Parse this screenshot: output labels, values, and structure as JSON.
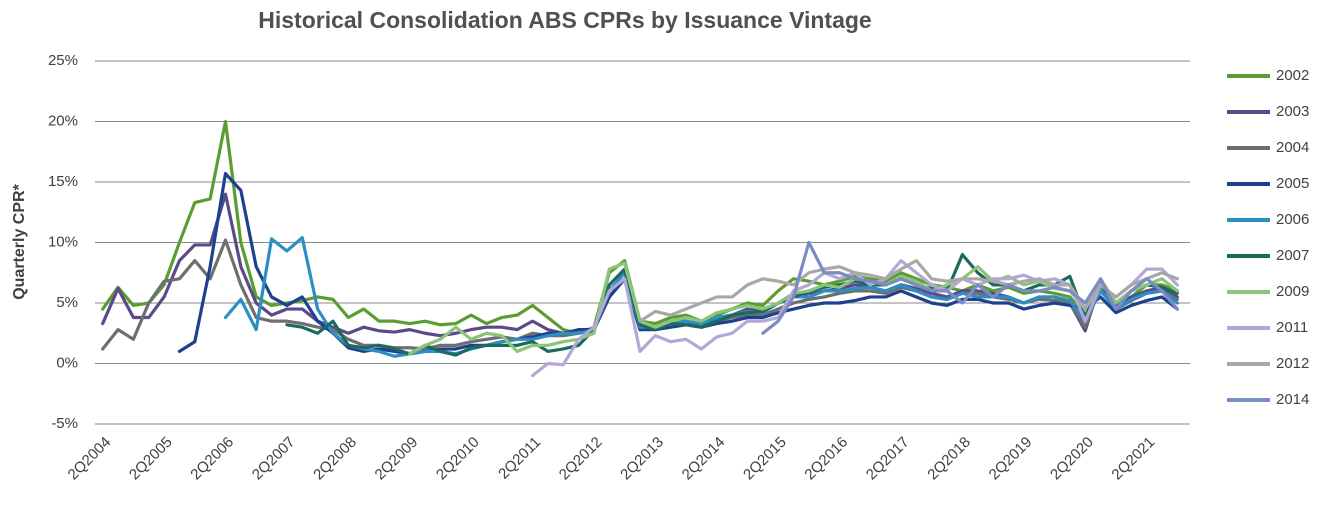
{
  "chart_data": {
    "type": "line",
    "title": "Historical Consolidation ABS CPRs by Issuance Vintage",
    "y_label": "Quarterly CPR*",
    "categories": [
      "2Q2004",
      null,
      null,
      null,
      "2Q2005",
      null,
      null,
      null,
      "2Q2006",
      null,
      null,
      null,
      "2Q2007",
      null,
      null,
      null,
      "2Q2008",
      null,
      null,
      null,
      "2Q2009",
      null,
      null,
      null,
      "2Q2010",
      null,
      null,
      null,
      "2Q2011",
      null,
      null,
      null,
      "2Q2012",
      null,
      null,
      null,
      "2Q2013",
      null,
      null,
      null,
      "2Q2014",
      null,
      null,
      null,
      "2Q2015",
      null,
      null,
      null,
      "2Q2016",
      null,
      null,
      null,
      "2Q2017",
      null,
      null,
      null,
      "2Q2018",
      null,
      null,
      null,
      "2Q2019",
      null,
      null,
      null,
      "2Q2020",
      null,
      null,
      null,
      "2Q2021",
      null,
      null
    ],
    "ylim": [
      -5,
      25
    ],
    "yticks": [
      {
        "value": -5,
        "label": "-5%"
      },
      {
        "value": 0,
        "label": "0%"
      },
      {
        "value": 5,
        "label": "5%"
      },
      {
        "value": 10,
        "label": "10%"
      },
      {
        "value": 15,
        "label": "15%"
      },
      {
        "value": 20,
        "label": "20%"
      },
      {
        "value": 25,
        "label": "25%"
      }
    ],
    "grid": true,
    "legend": "right",
    "series": [
      {
        "name": "2002",
        "color": "#5a9e32",
        "values": [
          4.5,
          6.3,
          4.8,
          5.0,
          6.5,
          10,
          13.3,
          13.6,
          20,
          10,
          5.5,
          4.8,
          5.0,
          5.2,
          5.5,
          5.3,
          3.8,
          4.5,
          3.5,
          3.5,
          3.3,
          3.5,
          3.2,
          3.3,
          4.0,
          3.3,
          3.8,
          4.0,
          4.8,
          3.8,
          2.8,
          2.5,
          3.0,
          7.5,
          8.5,
          3.5,
          3.3,
          3.8,
          4.0,
          3.5,
          4.0,
          4.5,
          5.0,
          4.8,
          6.0,
          7.0,
          6.8,
          6.5,
          6.8,
          7.2,
          7.0,
          6.8,
          7.5,
          7.0,
          6.5,
          6.3,
          6.0,
          6.5,
          6.0,
          6.3,
          5.8,
          6.0,
          5.8,
          5.5,
          4.0,
          6.5,
          5.0,
          5.5,
          6.5,
          6.5,
          6.0
        ]
      },
      {
        "name": "2003",
        "color": "#5b4a8a",
        "values": [
          3.3,
          6.2,
          3.8,
          3.8,
          5.5,
          8.5,
          9.8,
          9.8,
          14,
          8,
          5,
          4,
          4.5,
          4.5,
          3.5,
          3,
          2.5,
          3,
          2.7,
          2.6,
          2.8,
          2.5,
          2.3,
          2.5,
          2.8,
          3.0,
          3.0,
          2.8,
          3.5,
          2.8,
          2.5,
          2.5,
          2.8,
          5.5,
          7,
          3,
          3,
          3.5,
          3.5,
          3.0,
          3.8,
          4.0,
          4.5,
          4.3,
          5.0,
          5.5,
          5.8,
          6.0,
          6.2,
          6.5,
          6.3,
          6.0,
          6.5,
          6.2,
          5.8,
          5.5,
          6.0,
          6.0,
          5.8,
          5.5,
          5.0,
          5.5,
          5.5,
          5.0,
          2.7,
          6.8,
          4.8,
          5.5,
          6.0,
          6.3,
          5.5
        ]
      },
      {
        "name": "2004",
        "color": "#6e6e6e",
        "values": [
          1.2,
          2.8,
          2.0,
          5.0,
          6.8,
          7.0,
          8.5,
          7.0,
          10.2,
          6.5,
          3.8,
          3.5,
          3.5,
          3.3,
          3.0,
          2.8,
          2.0,
          1.5,
          1.5,
          1.3,
          1.3,
          1.2,
          1.5,
          1.5,
          1.8,
          2.0,
          2.2,
          2.0,
          2.5,
          2.3,
          2.3,
          2.5,
          2.8,
          5.5,
          7.0,
          2.8,
          3.0,
          3.3,
          3.2,
          3.0,
          3.5,
          3.8,
          4.0,
          4.0,
          4.5,
          5.0,
          5.3,
          5.5,
          5.8,
          6.0,
          6.0,
          5.8,
          6.3,
          6.0,
          5.5,
          5.3,
          5.8,
          5.8,
          5.5,
          5.3,
          5.0,
          5.3,
          5.2,
          5.0,
          3.0,
          6.5,
          4.5,
          5.2,
          5.8,
          6.0,
          5.3
        ]
      },
      {
        "name": "2005",
        "color": "#1f3f8f",
        "values": [
          null,
          null,
          null,
          null,
          null,
          1.0,
          1.8,
          8,
          15.7,
          14.3,
          8,
          5.5,
          4.8,
          5.5,
          3.5,
          2.5,
          1.3,
          1.0,
          1.2,
          1.0,
          0.8,
          1.0,
          1.2,
          1.2,
          1.5,
          1.5,
          1.8,
          2.0,
          2.2,
          2.5,
          2.5,
          2.8,
          2.8,
          5.5,
          7.0,
          2.8,
          2.8,
          3.0,
          3.2,
          3.0,
          3.3,
          3.5,
          3.8,
          3.8,
          4.2,
          4.5,
          4.8,
          5.0,
          5.0,
          5.2,
          5.5,
          5.5,
          6.0,
          5.5,
          5.0,
          4.8,
          5.3,
          5.3,
          5.0,
          5.0,
          4.5,
          4.8,
          5.0,
          4.8,
          4.5,
          5.5,
          4.2,
          4.8,
          5.2,
          5.5,
          4.5
        ]
      },
      {
        "name": "2006",
        "color": "#2b8fc4",
        "values": [
          null,
          null,
          null,
          null,
          null,
          null,
          null,
          null,
          3.8,
          5.3,
          2.8,
          10.3,
          9.3,
          10.4,
          4.5,
          2.5,
          1.5,
          1.2,
          1.0,
          0.6,
          0.8,
          1.0,
          1.0,
          0.8,
          1.2,
          1.5,
          1.8,
          2.0,
          2.0,
          2.3,
          2.5,
          2.5,
          2.8,
          6.0,
          7.5,
          3.0,
          3.0,
          3.3,
          3.5,
          3.3,
          3.8,
          4.0,
          4.3,
          4.2,
          5.0,
          5.5,
          5.5,
          6.0,
          6.0,
          6.2,
          6.3,
          6.0,
          6.5,
          6.0,
          5.5,
          5.3,
          5.8,
          5.5,
          5.5,
          5.5,
          5.0,
          5.5,
          5.5,
          5.2,
          3.5,
          6.0,
          4.5,
          5.3,
          5.8,
          6.0,
          5.0
        ]
      },
      {
        "name": "2007",
        "color": "#1a6b5e",
        "values": [
          null,
          null,
          null,
          null,
          null,
          null,
          null,
          null,
          null,
          null,
          null,
          null,
          3.2,
          3.0,
          2.5,
          3.5,
          1.5,
          1.3,
          1.5,
          1.2,
          0.8,
          1.5,
          1.0,
          0.7,
          1.3,
          1.5,
          1.5,
          1.5,
          1.8,
          1.0,
          1.2,
          1.5,
          2.8,
          6.5,
          7.8,
          3.2,
          2.8,
          3.3,
          3.2,
          3.0,
          3.5,
          4.0,
          4.2,
          4.3,
          5.0,
          5.5,
          6.0,
          6.3,
          6.5,
          6.8,
          6.5,
          6.5,
          7.0,
          6.5,
          6.2,
          6.0,
          9.0,
          7.5,
          6.5,
          6.5,
          6.0,
          6.5,
          6.5,
          7.2,
          3.8,
          6.5,
          5.0,
          6.0,
          6.5,
          6.3,
          5.8
        ]
      },
      {
        "name": "2009",
        "color": "#8cc47a",
        "values": [
          null,
          null,
          null,
          null,
          null,
          null,
          null,
          null,
          null,
          null,
          null,
          null,
          null,
          null,
          null,
          null,
          null,
          null,
          null,
          null,
          0.8,
          1.5,
          2.0,
          3.0,
          2.0,
          2.5,
          2.3,
          1.0,
          1.5,
          1.5,
          1.8,
          2.0,
          2.5,
          7.8,
          8.3,
          3.5,
          3.0,
          3.5,
          3.8,
          3.5,
          4.2,
          4.5,
          4.8,
          4.5,
          5.0,
          5.8,
          6.0,
          6.5,
          6.3,
          7.0,
          6.8,
          6.5,
          7.2,
          6.8,
          6.0,
          6.5,
          7.0,
          8.0,
          6.8,
          7.2,
          6.5,
          6.8,
          6.2,
          6.0,
          4.5,
          7.0,
          5.0,
          6.0,
          6.5,
          7.0,
          6.0
        ]
      },
      {
        "name": "2011",
        "color": "#b3a8d4",
        "values": [
          null,
          null,
          null,
          null,
          null,
          null,
          null,
          null,
          null,
          null,
          null,
          null,
          null,
          null,
          null,
          null,
          null,
          null,
          null,
          null,
          null,
          null,
          null,
          null,
          null,
          null,
          null,
          null,
          -1.0,
          0.0,
          -0.1,
          2.0,
          3.0,
          6.0,
          7.0,
          1.0,
          2.3,
          1.8,
          2.0,
          1.2,
          2.2,
          2.5,
          3.5,
          3.5,
          3.8,
          6.0,
          6.5,
          7.5,
          7.0,
          7.5,
          6.5,
          7.0,
          8.5,
          7.5,
          6.5,
          6.0,
          7.0,
          6.5,
          7.0,
          7.0,
          7.3,
          6.8,
          7.0,
          6.5,
          3.5,
          6.5,
          5.5,
          6.5,
          7.8,
          7.8,
          6.5
        ]
      },
      {
        "name": "2012",
        "color": "#a8a8a8",
        "values": [
          null,
          null,
          null,
          null,
          null,
          null,
          null,
          null,
          null,
          null,
          null,
          null,
          null,
          null,
          null,
          null,
          null,
          null,
          null,
          null,
          null,
          null,
          null,
          null,
          null,
          null,
          null,
          null,
          null,
          null,
          null,
          null,
          null,
          null,
          null,
          3.5,
          4.3,
          4.0,
          4.5,
          5.0,
          5.5,
          5.5,
          6.5,
          7.0,
          6.8,
          6.5,
          7.5,
          7.8,
          8.0,
          7.5,
          7.3,
          7.0,
          7.8,
          8.5,
          7.0,
          6.8,
          7.0,
          7.0,
          6.8,
          6.5,
          6.8,
          7.0,
          6.5,
          6.5,
          4.5,
          6.5,
          5.5,
          6.5,
          7.0,
          7.5,
          7.0
        ]
      },
      {
        "name": "2014",
        "color": "#7b8bc4",
        "values": [
          null,
          null,
          null,
          null,
          null,
          null,
          null,
          null,
          null,
          null,
          null,
          null,
          null,
          null,
          null,
          null,
          null,
          null,
          null,
          null,
          null,
          null,
          null,
          null,
          null,
          null,
          null,
          null,
          null,
          null,
          null,
          null,
          null,
          null,
          null,
          null,
          null,
          null,
          null,
          null,
          null,
          null,
          null,
          2.5,
          3.5,
          5.5,
          10.0,
          7.5,
          7.5,
          7.0,
          6.8,
          6.5,
          7.0,
          6.5,
          6.0,
          6.0,
          5.0,
          6.5,
          5.5,
          6.5,
          6.0,
          6.0,
          6.3,
          6.0,
          5.0,
          7.0,
          4.5,
          6.0,
          7.0,
          6.0,
          4.5
        ]
      }
    ]
  }
}
